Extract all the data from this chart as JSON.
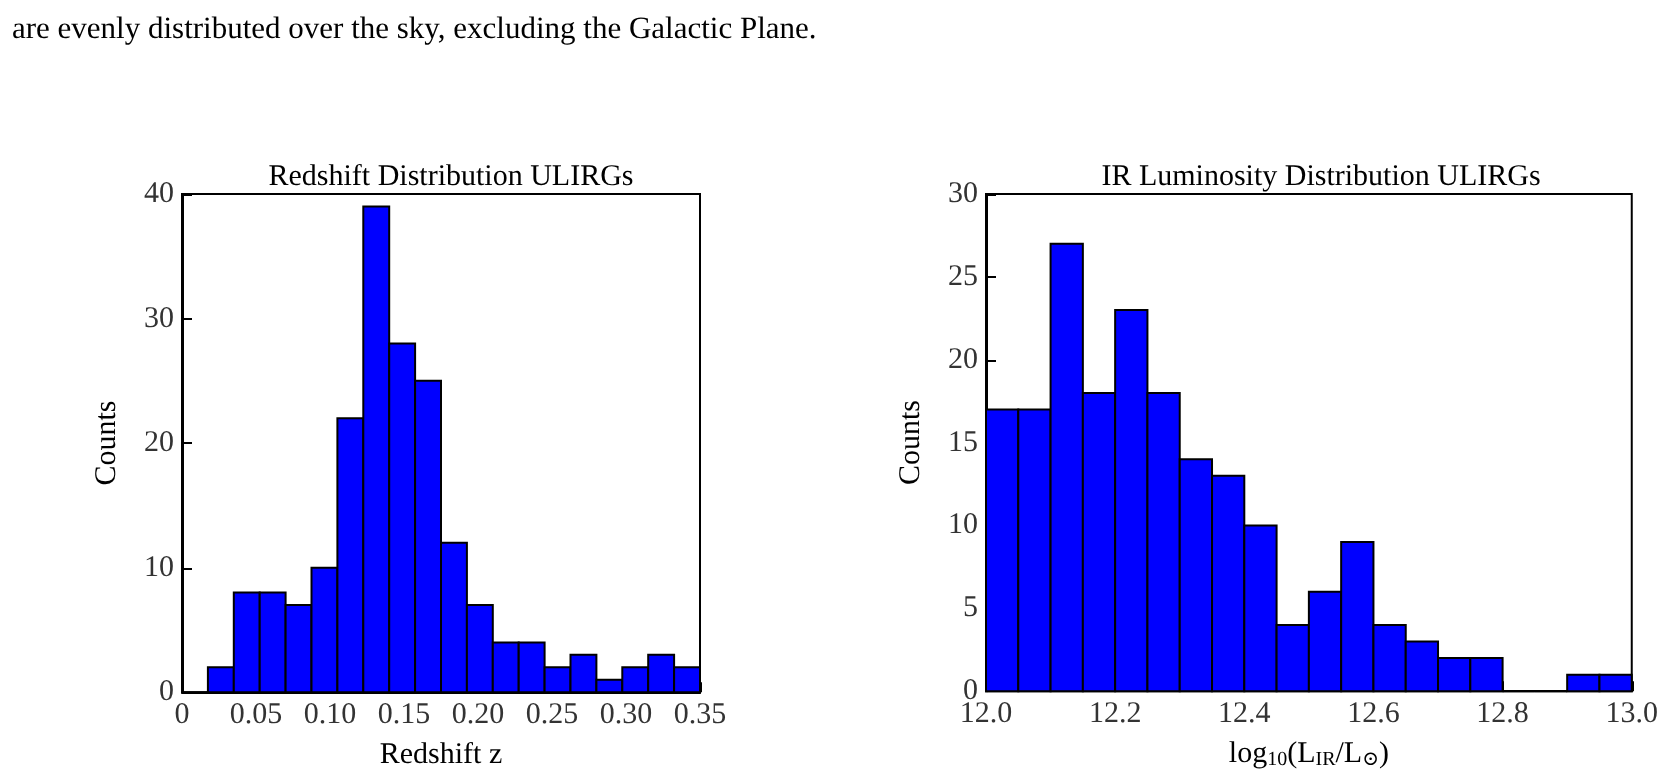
{
  "chart_data": [
    {
      "type": "histogram",
      "title": "Redshift Distribution ULIRGs",
      "xlabel": "Redshift z",
      "ylabel": "Counts",
      "annotations": [
        "are evenly distributed over the sky, excluding the Galactic Plane."
      ],
      "bins": [
        0,
        0.0175,
        0.035,
        0.0525,
        0.07,
        0.0875,
        0.105,
        0.1225,
        0.14,
        0.1575,
        0.175,
        0.1925,
        0.21,
        0.2275,
        0.245,
        0.2625,
        0.28,
        0.2975,
        0.315,
        0.3325,
        0.35
      ],
      "values": [
        0,
        2,
        8,
        8,
        7,
        10,
        22,
        39,
        28,
        25,
        12,
        7,
        4,
        4,
        2,
        3,
        1,
        2,
        3,
        2
      ],
      "color": "#0000ff",
      "xlim": [
        0,
        0.35
      ],
      "ylim": [
        0,
        40
      ],
      "xticks": [
        0,
        0.05,
        {
          "value": 0.1,
          "label": "0.10"
        },
        0.15,
        {
          "value": 0.2,
          "label": "0.20"
        },
        0.25,
        {
          "value": 0.3,
          "label": "0.30"
        },
        0.35
      ],
      "yticks": [
        0,
        10,
        20,
        30,
        40
      ]
    },
    {
      "type": "histogram",
      "title": "IR Luminosity Distribution ULIRGs",
      "xlabel": "log$_{10}$(L$_{IR}$/L$_{⊙}$)",
      "ylabel": "Counts",
      "bins": [
        12.0,
        12.05,
        12.1,
        12.15,
        12.2,
        12.25,
        12.3,
        12.35,
        12.4,
        12.45,
        12.5,
        12.55,
        12.6,
        12.65,
        12.7,
        12.75,
        12.8,
        12.85,
        12.9,
        12.95,
        13.0
      ],
      "values": [
        17,
        17,
        27,
        18,
        23,
        18,
        14,
        13,
        10,
        4,
        6,
        9,
        4,
        3,
        2,
        2,
        0,
        0,
        1,
        1
      ],
      "color": "#0000ff",
      "xlim": [
        12.0,
        13.0
      ],
      "ylim": [
        0,
        30
      ],
      "xticks": [
        {
          "value": 12.0,
          "label": "12.0"
        },
        12.2,
        12.4,
        12.6,
        12.8,
        {
          "value": 13.0,
          "label": "13.0"
        }
      ],
      "yticks": [
        0,
        5,
        10,
        15,
        20,
        25,
        30
      ]
    }
  ]
}
